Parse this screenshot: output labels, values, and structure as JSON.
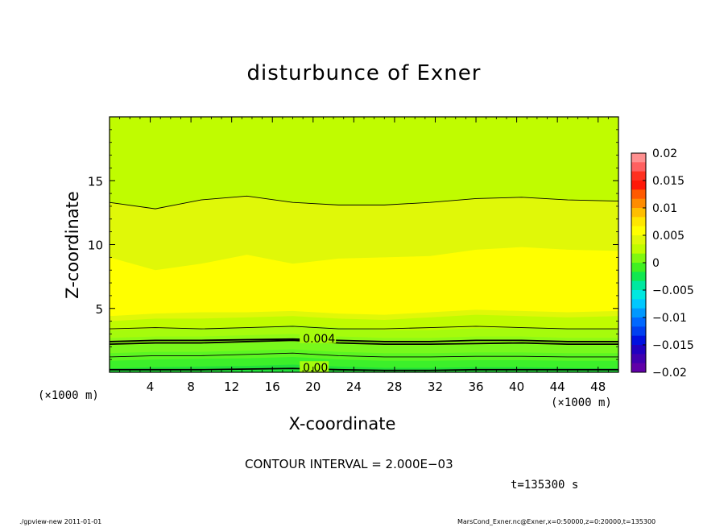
{
  "chart_data": {
    "type": "heatmap",
    "title": "disturbunce of Exner",
    "xlabel": "X-coordinate",
    "ylabel": "Z-coordinate",
    "x_unit_left": "(×1000 m)",
    "x_unit_right": "(×1000 m)",
    "xlim": [
      0,
      50
    ],
    "ylim": [
      0,
      20
    ],
    "x_ticks": [
      4,
      8,
      12,
      16,
      20,
      24,
      28,
      32,
      36,
      40,
      44,
      48
    ],
    "y_ticks": [
      5,
      10,
      15
    ],
    "bands": [
      {
        "level": 0.0005,
        "color": "#22e03a",
        "z": [
          0.3,
          0.4,
          0.45,
          0.5,
          0.6,
          0.45,
          0.35,
          0.35,
          0.4,
          0.4,
          0.35,
          0.3
        ]
      },
      {
        "level": 0.001,
        "color": "#3cf02a",
        "z": [
          0.9,
          1.0,
          1.05,
          1.1,
          1.2,
          1.0,
          0.9,
          0.9,
          0.95,
          0.95,
          0.9,
          0.9
        ]
      },
      {
        "level": 0.0015,
        "color": "#5cf522",
        "z": [
          1.5,
          1.6,
          1.6,
          1.7,
          1.8,
          1.6,
          1.5,
          1.5,
          1.55,
          1.55,
          1.5,
          1.5
        ]
      },
      {
        "level": 0.002,
        "color": "#78f81c",
        "z": [
          2.1,
          2.2,
          2.2,
          2.3,
          2.4,
          2.2,
          2.1,
          2.1,
          2.15,
          2.2,
          2.1,
          2.1
        ]
      },
      {
        "level": 0.0025,
        "color": "#8ffa14",
        "z": [
          2.7,
          2.8,
          2.8,
          2.9,
          3.0,
          2.8,
          2.7,
          2.7,
          2.8,
          2.8,
          2.7,
          2.7
        ]
      },
      {
        "level": 0.003,
        "color": "#a6fb0c",
        "z": [
          3.3,
          3.4,
          3.4,
          3.5,
          3.7,
          3.5,
          3.3,
          3.3,
          3.45,
          3.45,
          3.4,
          3.35
        ]
      },
      {
        "level": 0.0035,
        "color": "#c0fc00",
        "z": [
          4.0,
          4.2,
          4.2,
          4.3,
          4.4,
          4.2,
          4.1,
          4.3,
          4.5,
          4.4,
          4.3,
          4.4
        ]
      },
      {
        "level": 0.004,
        "color": "#e0f808",
        "z": [
          4.4,
          4.6,
          4.7,
          4.7,
          4.8,
          4.6,
          4.5,
          4.7,
          4.9,
          4.8,
          4.7,
          4.8
        ]
      },
      {
        "level": 0.0045,
        "color": "#ffff00",
        "z": [
          9.0,
          8.0,
          8.5,
          9.2,
          8.5,
          8.9,
          9.0,
          9.1,
          9.6,
          9.8,
          9.6,
          9.5
        ]
      },
      {
        "level": 0.004,
        "color": "#e0f808",
        "z": [
          13.3,
          12.8,
          13.5,
          13.8,
          13.3,
          13.1,
          13.1,
          13.3,
          13.6,
          13.7,
          13.5,
          13.4
        ]
      },
      {
        "level": 0.0035,
        "color": "#c0fc00",
        "z": [
          20,
          20,
          20,
          20,
          20,
          20,
          20,
          20,
          20,
          20,
          20,
          20
        ]
      }
    ],
    "band_x": [
      0,
      4.5,
      9,
      13.5,
      18,
      22.5,
      27,
      31.5,
      36,
      40.5,
      45,
      50
    ],
    "contours": [
      {
        "label": "0.00",
        "label_x": 19.0,
        "z": [
          0.2,
          0.2,
          0.2,
          0.25,
          0.3,
          0.2,
          0.15,
          0.15,
          0.2,
          0.2,
          0.2,
          0.2
        ],
        "bold": true
      },
      {
        "label": "",
        "label_x": 0,
        "z": [
          1.2,
          1.3,
          1.3,
          1.4,
          1.5,
          1.3,
          1.2,
          1.2,
          1.25,
          1.25,
          1.2,
          1.2
        ],
        "bold": false
      },
      {
        "label": "",
        "label_x": 0,
        "z": [
          2.2,
          2.3,
          2.3,
          2.4,
          2.5,
          2.3,
          2.2,
          2.2,
          2.25,
          2.3,
          2.2,
          2.2
        ],
        "bold": true
      },
      {
        "label": "0.004",
        "label_x": 19.0,
        "z": [
          2.4,
          2.5,
          2.5,
          2.55,
          2.6,
          2.5,
          2.4,
          2.4,
          2.5,
          2.5,
          2.4,
          2.4
        ],
        "bold": true
      },
      {
        "label": "",
        "label_x": 0,
        "z": [
          3.4,
          3.5,
          3.4,
          3.5,
          3.6,
          3.4,
          3.4,
          3.5,
          3.6,
          3.5,
          3.4,
          3.4
        ],
        "bold": false
      },
      {
        "label": "",
        "label_x": 0,
        "z": [
          13.3,
          12.8,
          13.5,
          13.8,
          13.3,
          13.1,
          13.1,
          13.3,
          13.6,
          13.7,
          13.5,
          13.4
        ],
        "bold": false
      }
    ],
    "colorbar": {
      "labels": [
        "0.02",
        "0.015",
        "0.01",
        "0.005",
        "0",
        "−0.005",
        "−0.01",
        "−0.015",
        "−0.02"
      ],
      "colors": [
        "#ff9090",
        "#ff6060",
        "#ff3020",
        "#ff1808",
        "#ff5a00",
        "#ff8c00",
        "#ffbe00",
        "#ffe600",
        "#ffff00",
        "#e0f808",
        "#c0fc00",
        "#80f810",
        "#40f020",
        "#10e850",
        "#00e8a0",
        "#00e8e0",
        "#00c8ff",
        "#0098ff",
        "#0068ff",
        "#0040f0",
        "#0010e0",
        "#2000c0",
        "#4000b0",
        "#6000a8"
      ]
    }
  },
  "contour_interval": "CONTOUR INTERVAL = 2.000E−03",
  "time_label": "t=135300 s",
  "footer_left": "./gpview-new 2011-01-01",
  "footer_right": "MarsCond_Exner.nc@Exner,x=0:50000,z=0:20000,t=135300"
}
